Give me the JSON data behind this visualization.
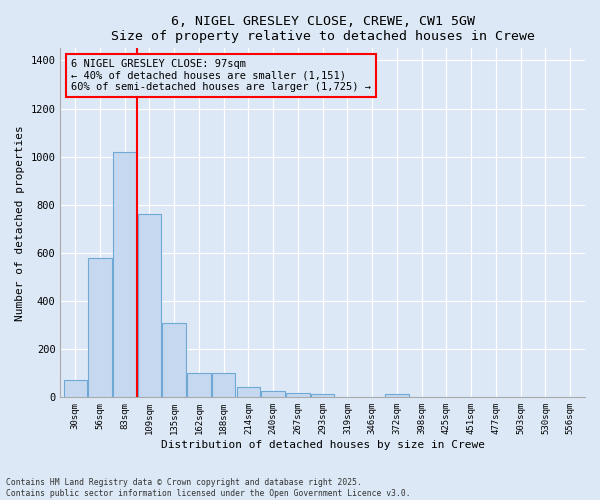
{
  "title": "6, NIGEL GRESLEY CLOSE, CREWE, CW1 5GW",
  "subtitle": "Size of property relative to detached houses in Crewe",
  "xlabel": "Distribution of detached houses by size in Crewe",
  "ylabel": "Number of detached properties",
  "categories": [
    "30sqm",
    "56sqm",
    "83sqm",
    "109sqm",
    "135sqm",
    "162sqm",
    "188sqm",
    "214sqm",
    "240sqm",
    "267sqm",
    "293sqm",
    "319sqm",
    "346sqm",
    "372sqm",
    "398sqm",
    "425sqm",
    "451sqm",
    "477sqm",
    "503sqm",
    "530sqm",
    "556sqm"
  ],
  "values": [
    70,
    580,
    1020,
    760,
    310,
    100,
    100,
    45,
    25,
    20,
    13,
    0,
    0,
    13,
    0,
    0,
    0,
    0,
    0,
    0,
    0
  ],
  "bar_color": "#c5d8f0",
  "bar_edge_color": "#6fa8d4",
  "property_label": "6 NIGEL GRESLEY CLOSE: 97sqm",
  "annotation_line1": "← 40% of detached houses are smaller (1,151)",
  "annotation_line2": "60% of semi-detached houses are larger (1,725) →",
  "ylim": [
    0,
    1450
  ],
  "yticks": [
    0,
    200,
    400,
    600,
    800,
    1000,
    1200,
    1400
  ],
  "background_color": "#dce8f5",
  "footer_line1": "Contains HM Land Registry data © Crown copyright and database right 2025.",
  "footer_line2": "Contains public sector information licensed under the Open Government Licence v3.0."
}
